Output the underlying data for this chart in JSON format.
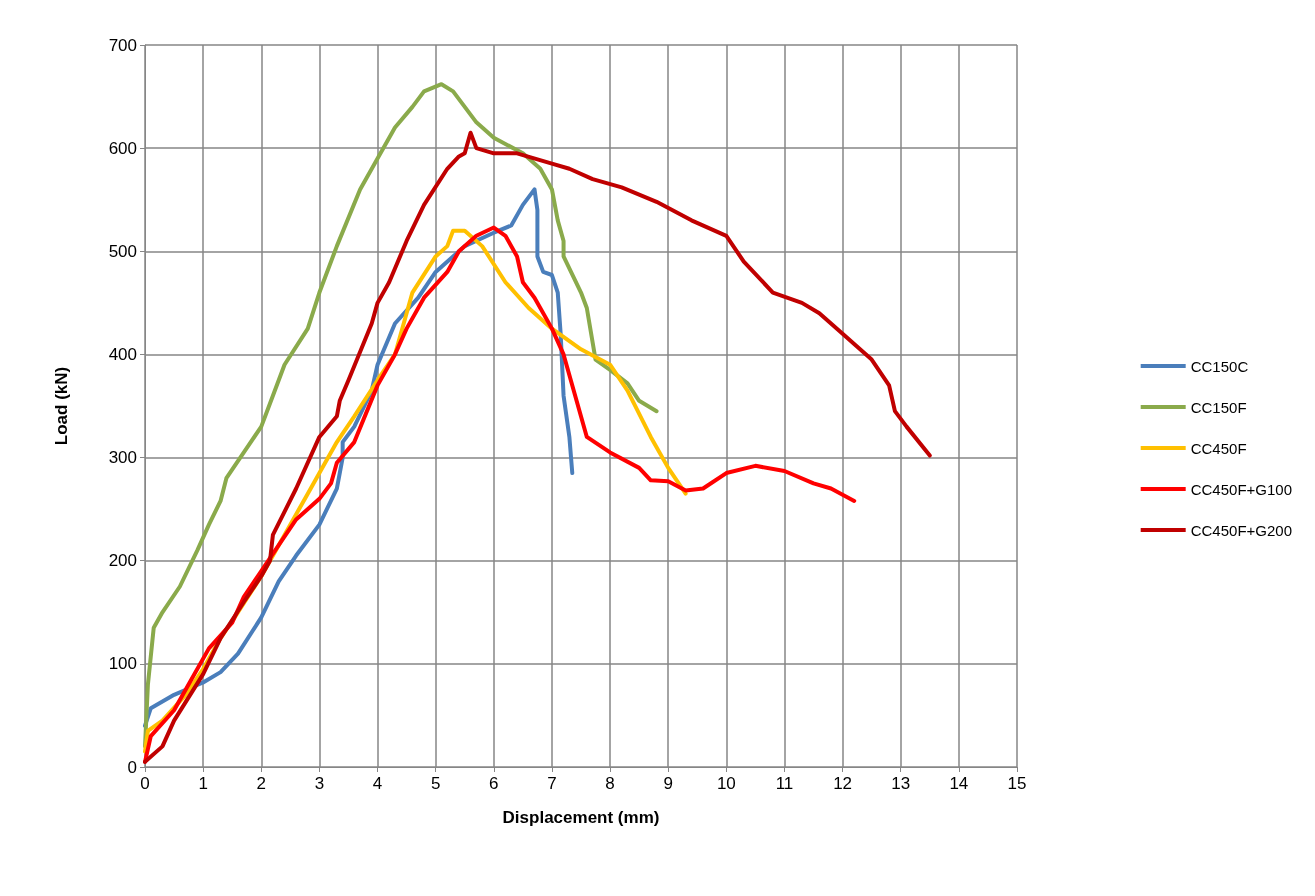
{
  "chart_data": {
    "type": "line",
    "xlabel": "Displacement (mm)",
    "ylabel": "Load (kN)",
    "xlim": [
      0,
      15
    ],
    "xticks": [
      0,
      1,
      2,
      3,
      4,
      5,
      6,
      7,
      8,
      9,
      10,
      11,
      12,
      13,
      14,
      15
    ],
    "ylim": [
      0,
      700
    ],
    "yticks": [
      0,
      100,
      200,
      300,
      400,
      500,
      600,
      700
    ],
    "grid": true,
    "legend": "right",
    "marker": "none",
    "line_style": "solid",
    "series": [
      {
        "name": "CC150C",
        "color": "#4a7ebb",
        "x": [
          0,
          0.1,
          0.5,
          1,
          1.3,
          1.6,
          2,
          2.3,
          2.6,
          3,
          3.3,
          3.4,
          3.4,
          3.6,
          3.9,
          4,
          4.3,
          4.7,
          5,
          5.5,
          6,
          6.3,
          6.5,
          6.7,
          6.75,
          6.75,
          6.85,
          7,
          7.1,
          7.15,
          7.2,
          7.3,
          7.35
        ],
        "values": [
          40,
          57,
          70,
          82,
          92,
          110,
          145,
          180,
          205,
          235,
          270,
          300,
          315,
          330,
          365,
          390,
          430,
          455,
          480,
          505,
          518,
          525,
          545,
          560,
          540,
          495,
          480,
          477,
          460,
          420,
          360,
          320,
          285
        ]
      },
      {
        "name": "CC150F",
        "color": "#8aaa4b",
        "x": [
          0,
          0.05,
          0.15,
          0.3,
          0.6,
          0.9,
          1.1,
          1.3,
          1.4,
          1.7,
          2,
          2.2,
          2.4,
          2.8,
          3,
          3.3,
          3.7,
          4,
          4.3,
          4.6,
          4.8,
          5.1,
          5.3,
          5.7,
          6,
          6.5,
          6.8,
          7,
          7.1,
          7.2,
          7.2,
          7.5,
          7.6,
          7.75,
          8,
          8.3,
          8.5,
          8.8
        ],
        "values": [
          20,
          80,
          135,
          150,
          175,
          210,
          235,
          258,
          280,
          305,
          330,
          360,
          390,
          425,
          460,
          505,
          560,
          590,
          620,
          640,
          655,
          662,
          655,
          625,
          610,
          595,
          580,
          560,
          530,
          510,
          495,
          460,
          445,
          395,
          385,
          372,
          355,
          345
        ]
      },
      {
        "name": "CC450F",
        "color": "#ffc000",
        "x": [
          0,
          0.05,
          0.3,
          0.7,
          1,
          1.3,
          1.6,
          2,
          2.4,
          2.8,
          3,
          3.3,
          3.6,
          4,
          4.3,
          4.5,
          4.6,
          5,
          5.2,
          5.3,
          5.5,
          5.8,
          6.2,
          6.6,
          7,
          7.5,
          8,
          8.3,
          8.7,
          9,
          9.3
        ],
        "values": [
          15,
          35,
          45,
          70,
          95,
          125,
          150,
          185,
          225,
          265,
          285,
          315,
          340,
          375,
          400,
          440,
          460,
          495,
          505,
          520,
          520,
          505,
          470,
          445,
          425,
          405,
          390,
          365,
          320,
          290,
          265
        ]
      },
      {
        "name": "CC450F+G100",
        "color": "#ff0000",
        "x": [
          0,
          0.1,
          0.5,
          0.8,
          1.1,
          1.5,
          1.7,
          2,
          2.3,
          2.6,
          3,
          3.2,
          3.3,
          3.6,
          4,
          4.3,
          4.5,
          4.8,
          5.2,
          5.4,
          5.7,
          6,
          6.2,
          6.4,
          6.5,
          6.7,
          7,
          7.2,
          7.4,
          7.6,
          8,
          8.5,
          8.7,
          9,
          9.3,
          9.6,
          10,
          10.5,
          11,
          11.5,
          11.8,
          12.2
        ],
        "values": [
          5,
          30,
          55,
          85,
          115,
          140,
          165,
          190,
          215,
          240,
          260,
          275,
          295,
          315,
          370,
          400,
          425,
          455,
          480,
          500,
          515,
          523,
          515,
          495,
          470,
          455,
          425,
          400,
          360,
          320,
          305,
          290,
          278,
          277,
          268,
          270,
          285,
          292,
          287,
          275,
          270,
          258
        ]
      },
      {
        "name": "CC450F+G200",
        "color": "#c00000",
        "x": [
          0,
          0.3,
          0.5,
          1,
          1.3,
          1.7,
          2,
          2.15,
          2.2,
          2.6,
          3,
          3.3,
          3.35,
          3.5,
          3.9,
          4,
          4.2,
          4.5,
          4.8,
          5.2,
          5.4,
          5.5,
          5.6,
          5.7,
          6,
          6.4,
          7,
          7.3,
          7.7,
          8.2,
          8.8,
          9.4,
          10,
          10.3,
          10.8,
          11.3,
          11.6,
          12,
          12.5,
          12.8,
          12.9,
          13.1,
          13.5
        ],
        "values": [
          5,
          20,
          45,
          90,
          125,
          160,
          185,
          200,
          225,
          270,
          320,
          340,
          355,
          375,
          430,
          450,
          470,
          510,
          545,
          580,
          592,
          595,
          615,
          600,
          595,
          595,
          585,
          580,
          570,
          562,
          548,
          530,
          515,
          490,
          460,
          450,
          440,
          420,
          395,
          370,
          345,
          330,
          302
        ]
      }
    ]
  }
}
